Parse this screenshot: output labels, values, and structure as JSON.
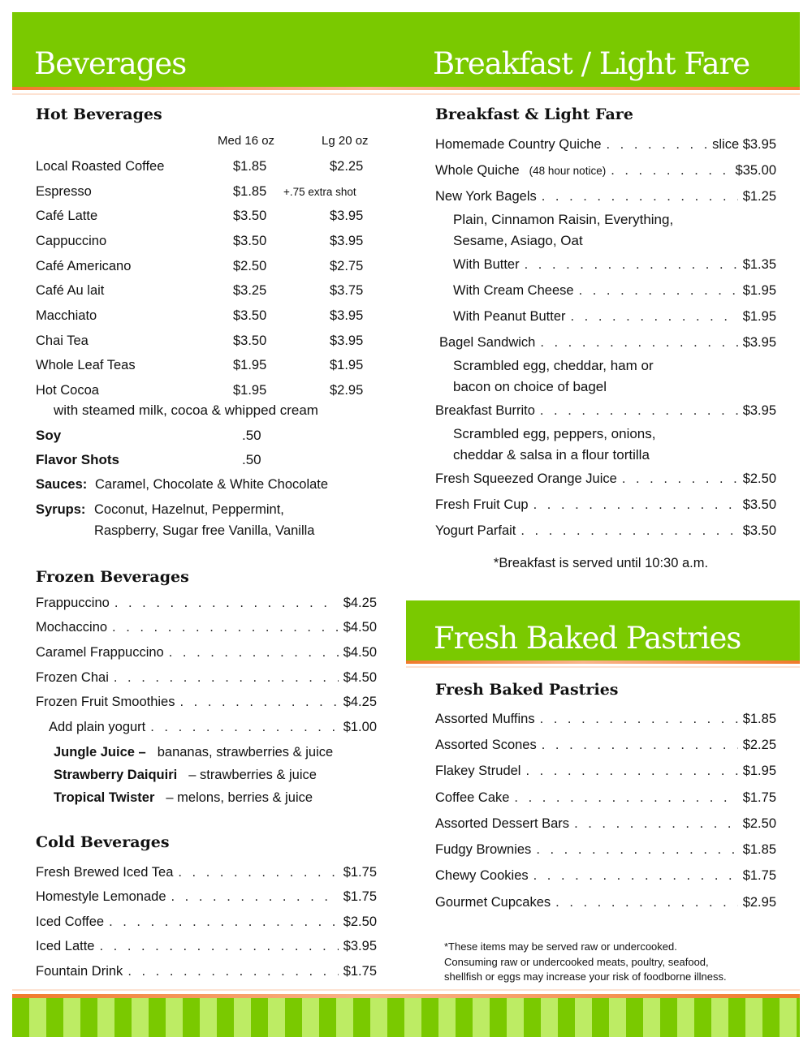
{
  "colors": {
    "green": "#7ac900",
    "light_green": "#bdec64",
    "orange": "#f07a2a"
  },
  "headers": {
    "beverages": "Beverages",
    "breakfast": "Breakfast / Light Fare",
    "pastries": "Fresh Baked Pastries"
  },
  "hot": {
    "heading": "Hot Beverages",
    "col_med": "Med 16 oz",
    "col_lg": "Lg 20 oz",
    "items": [
      [
        "Local Roasted Coffee",
        "$1.85",
        "$2.25"
      ],
      [
        "Espresso",
        "$1.85",
        "+.75 extra shot"
      ],
      [
        "Café Latte",
        "$3.50",
        "$3.95"
      ],
      [
        "Cappuccino",
        "$3.50",
        "$3.95"
      ],
      [
        "Café Americano",
        "$2.50",
        "$2.75"
      ],
      [
        "Café Au lait",
        "$3.25",
        "$3.75"
      ],
      [
        "Macchiato",
        "$3.50",
        "$3.95"
      ],
      [
        "Chai Tea",
        "$3.50",
        "$3.95"
      ],
      [
        "Whole Leaf Teas",
        "$1.95",
        "$1.95"
      ],
      [
        "Hot Cocoa",
        "$1.95",
        "$2.95"
      ]
    ],
    "cocoa_note": "with steamed milk, cocoa & whipped cream",
    "soy": "Soy",
    "soy_price": ".50",
    "flavor": "Flavor Shots",
    "flavor_price": ".50",
    "sauces_label": "Sauces:",
    "sauces": "Caramel, Chocolate & White Chocolate",
    "syrups_label": "Syrups:",
    "syrups_1": "Coconut, Hazelnut, Peppermint,",
    "syrups_2": "Raspberry, Sugar free Vanilla, Vanilla"
  },
  "frozen": {
    "heading": "Frozen Beverages",
    "items": [
      [
        "Frappuccino",
        "$4.25"
      ],
      [
        "Mochaccino",
        "$4.50"
      ],
      [
        "Caramel Frappuccino",
        "$4.50"
      ],
      [
        "Frozen Chai",
        "$4.50"
      ],
      [
        "Frozen Fruit Smoothies",
        "$4.25"
      ]
    ],
    "addon": [
      "Add plain yogurt",
      "$1.00"
    ],
    "smoothies": [
      [
        "Jungle Juice –",
        "bananas, strawberries & juice"
      ],
      [
        "Strawberry Daiquiri",
        "– strawberries & juice"
      ],
      [
        "Tropical Twister",
        "– melons, berries & juice"
      ]
    ]
  },
  "cold": {
    "heading": "Cold Beverages",
    "items": [
      [
        "Fresh Brewed Iced Tea",
        "$1.75"
      ],
      [
        "Homestyle Lemonade",
        "$1.75"
      ],
      [
        "Iced Coffee",
        "$2.50"
      ],
      [
        "Iced Latte",
        "$3.95"
      ],
      [
        "Fountain Drink",
        "$1.75"
      ]
    ]
  },
  "breakfast": {
    "heading": "Breakfast & Light Fare",
    "rows": [
      {
        "t": "item",
        "n": "Homemade Country Quiche",
        "p": "slice $3.95"
      },
      {
        "t": "item",
        "n": "Whole Quiche",
        "s": "(48 hour notice)",
        "p": "$35.00"
      },
      {
        "t": "item",
        "n": "New York Bagels",
        "p": "$1.25"
      },
      {
        "t": "sub",
        "n": "Plain, Cinnamon Raisin, Everything,"
      },
      {
        "t": "sub",
        "n": "Sesame, Asiago, Oat"
      },
      {
        "t": "item2",
        "n": "With Butter",
        "p": "$1.35"
      },
      {
        "t": "item2",
        "n": "With Cream Cheese",
        "p": "$1.95"
      },
      {
        "t": "item2",
        "n": "With Peanut Butter",
        "p": "$1.95"
      },
      {
        "t": "item3",
        "n": "Bagel Sandwich",
        "p": "$3.95"
      },
      {
        "t": "sub",
        "n": "Scrambled egg, cheddar, ham or"
      },
      {
        "t": "sub",
        "n": "bacon  on  choice of bagel"
      },
      {
        "t": "item",
        "n": "Breakfast Burrito",
        "p": "$3.95"
      },
      {
        "t": "sub",
        "n": "Scrambled egg, peppers, onions,"
      },
      {
        "t": "sub",
        "n": "cheddar  & salsa in a flour tortilla"
      },
      {
        "t": "item",
        "n": "Fresh Squeezed Orange Juice",
        "p": "$2.50"
      },
      {
        "t": "item",
        "n": "Fresh Fruit Cup",
        "p": "$3.50"
      },
      {
        "t": "item",
        "n": "Yogurt Parfait",
        "p": "$3.50"
      }
    ],
    "note": "*Breakfast is served until 10:30 a.m."
  },
  "pastries": {
    "heading": "Fresh Baked Pastries",
    "items": [
      [
        "Assorted Muffins",
        "$1.85"
      ],
      [
        "Assorted Scones",
        "$2.25"
      ],
      [
        "Flakey Strudel",
        "$1.95"
      ],
      [
        "Coffee Cake",
        "$1.75"
      ],
      [
        "Assorted Dessert Bars",
        "$2.50"
      ],
      [
        "Fudgy Brownies",
        "$1.85"
      ],
      [
        "Chewy Cookies",
        "$1.75"
      ],
      [
        "Gourmet Cupcakes",
        "$2.95"
      ]
    ],
    "note_1": "*These items may be served raw or undercooked.",
    "note_2": "Consuming raw or undercooked meats, poultry, seafood,",
    "note_3": "shellfish or eggs may increase your risk of foodborne illness."
  }
}
